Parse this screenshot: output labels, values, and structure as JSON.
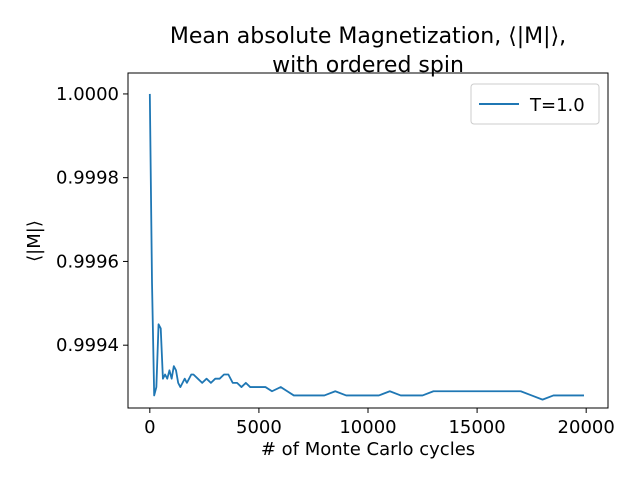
{
  "chart_data": {
    "type": "line",
    "title_line1": "Mean absolute Magnetization, ⟨|M|⟩,",
    "title_line2": "with ordered spin",
    "xlabel": "# of Monte Carlo cycles",
    "ylabel": "⟨|M|⟩",
    "xlim": [
      -1000,
      21000
    ],
    "ylim": [
      0.99925,
      1.00005
    ],
    "x_ticks": [
      0,
      5000,
      10000,
      15000,
      20000
    ],
    "x_tick_labels": [
      "0",
      "5000",
      "10000",
      "15000",
      "20000"
    ],
    "y_ticks": [
      0.9994,
      0.9996,
      0.9998,
      1.0
    ],
    "y_tick_labels": [
      "0.9994",
      "0.9996",
      "0.9998",
      "1.0000"
    ],
    "legend_position": "top-right",
    "color": "#1f77b4",
    "series": [
      {
        "name": "T=1.0",
        "x": [
          0,
          100,
          200,
          300,
          400,
          500,
          600,
          700,
          800,
          900,
          1000,
          1100,
          1200,
          1300,
          1400,
          1500,
          1600,
          1700,
          1800,
          1900,
          2000,
          2200,
          2400,
          2600,
          2800,
          3000,
          3200,
          3400,
          3600,
          3800,
          4000,
          4200,
          4400,
          4600,
          4800,
          5000,
          5300,
          5600,
          6000,
          6300,
          6600,
          7000,
          7500,
          8000,
          8500,
          9000,
          9500,
          10000,
          10500,
          11000,
          11500,
          12000,
          12500,
          13000,
          13500,
          14000,
          14500,
          15000,
          15500,
          16000,
          16500,
          17000,
          17500,
          18000,
          18500,
          19000,
          19500,
          19900
        ],
        "values": [
          1.0,
          0.99955,
          0.99928,
          0.9993,
          0.99945,
          0.99944,
          0.99932,
          0.99933,
          0.99932,
          0.99934,
          0.99932,
          0.99935,
          0.99934,
          0.99931,
          0.9993,
          0.99931,
          0.99932,
          0.99931,
          0.99932,
          0.99933,
          0.99933,
          0.99932,
          0.99931,
          0.99932,
          0.99931,
          0.99932,
          0.99932,
          0.99933,
          0.99933,
          0.99931,
          0.99931,
          0.9993,
          0.99931,
          0.9993,
          0.9993,
          0.9993,
          0.9993,
          0.99929,
          0.9993,
          0.99929,
          0.99928,
          0.99928,
          0.99928,
          0.99928,
          0.99929,
          0.99928,
          0.99928,
          0.99928,
          0.99928,
          0.99929,
          0.99928,
          0.99928,
          0.99928,
          0.99929,
          0.99929,
          0.99929,
          0.99929,
          0.99929,
          0.99929,
          0.99929,
          0.99929,
          0.99929,
          0.99928,
          0.99927,
          0.99928,
          0.99928,
          0.99928,
          0.99928
        ]
      }
    ]
  }
}
